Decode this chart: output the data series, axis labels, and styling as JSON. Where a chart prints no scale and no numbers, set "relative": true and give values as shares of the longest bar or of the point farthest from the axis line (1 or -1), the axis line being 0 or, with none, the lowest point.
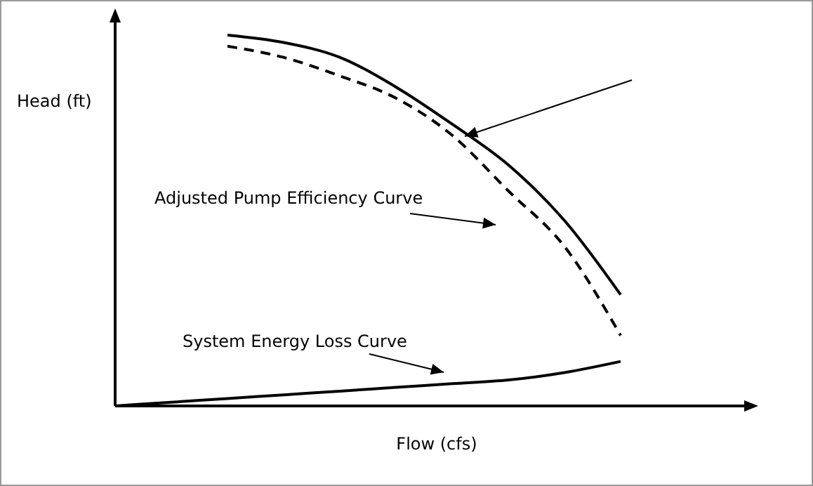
{
  "chart_data": {
    "type": "line",
    "relative": true,
    "xlabel": "Flow (cfs)",
    "ylabel": "Head (ft)",
    "categories": [
      null,
      null,
      null,
      null,
      null,
      null,
      null,
      null,
      null,
      null,
      null,
      null
    ],
    "series": [
      {
        "color": "#000000",
        "line_style": "solid",
        "values": [
          null,
          null,
          1.0,
          0.98,
          0.94,
          0.86,
          0.76,
          0.65,
          0.5,
          0.3,
          null,
          null
        ]
      },
      {
        "color": "#000000",
        "line_style": "dashed",
        "values": [
          null,
          null,
          0.97,
          0.94,
          0.89,
          0.83,
          0.73,
          0.58,
          0.43,
          0.19,
          null,
          null
        ]
      },
      {
        "color": "#000000",
        "line_style": "solid",
        "values": [
          0,
          0.01,
          0.02,
          0.03,
          0.04,
          0.05,
          0.06,
          0.07,
          0.09,
          0.12,
          null,
          null
        ]
      }
    ],
    "annotations": [
      "Adjusted Pump Efficiency Curve",
      "System Energy Loss Curve"
    ]
  }
}
